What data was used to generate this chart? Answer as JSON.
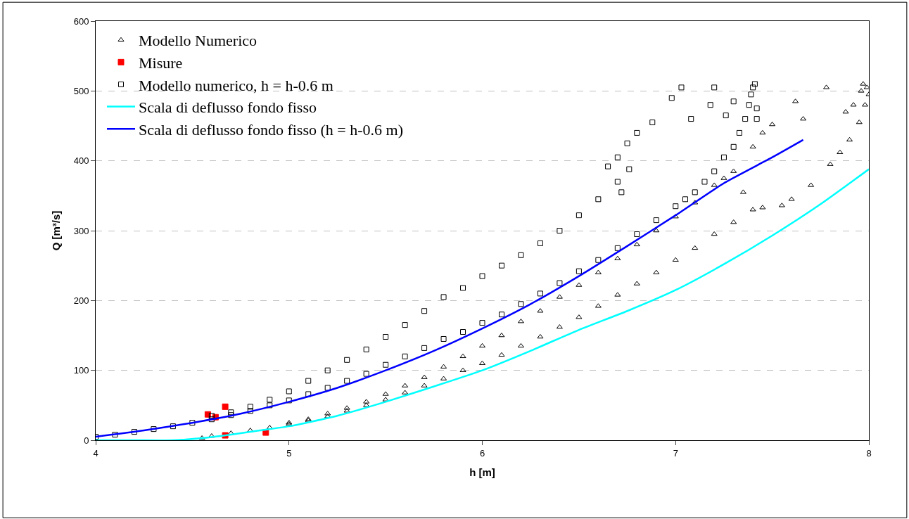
{
  "chart_data": {
    "type": "scatter",
    "xlabel": "h [m]",
    "ylabel": "Q [m³/s]",
    "xlim": [
      4,
      8
    ],
    "ylim": [
      0,
      600
    ],
    "xticks": [
      4,
      5,
      6,
      7,
      8
    ],
    "yticks": [
      0,
      100,
      200,
      300,
      400,
      500,
      600
    ],
    "grid": "y",
    "legend": "top left",
    "series": [
      {
        "name": "Modello Numerico",
        "color": "#000000",
        "marker": "triangle",
        "x": [
          4.55,
          4.6,
          4.7,
          4.8,
          4.9,
          5.0,
          5.1,
          5.2,
          5.3,
          5.4,
          5.5,
          5.6,
          5.7,
          5.8,
          5.9,
          6.0,
          6.1,
          6.2,
          6.3,
          6.4,
          6.5,
          6.6,
          6.7,
          6.8,
          6.9,
          7.0,
          7.1,
          7.2,
          7.3,
          7.4,
          7.45,
          7.55,
          7.6,
          7.7,
          7.8,
          7.85,
          7.9,
          7.95,
          7.98,
          8.0,
          7.99,
          7.97,
          7.96,
          7.62,
          7.66,
          7.78,
          7.88,
          7.92,
          5.0,
          5.1,
          5.2,
          5.3,
          5.4,
          5.5,
          5.6,
          5.7,
          5.8,
          5.9,
          6.0,
          6.1,
          6.2,
          6.3,
          6.4,
          6.5,
          6.6,
          6.7,
          6.8,
          6.9,
          7.0,
          7.1,
          7.2,
          7.25,
          7.3,
          7.35,
          7.4,
          7.45,
          7.5
        ],
        "values": [
          3,
          6,
          10,
          14,
          18,
          23,
          28,
          34,
          42,
          50,
          58,
          68,
          78,
          88,
          100,
          110,
          122,
          135,
          148,
          162,
          176,
          192,
          208,
          224,
          240,
          258,
          275,
          295,
          312,
          330,
          333,
          336,
          345,
          365,
          395,
          412,
          430,
          455,
          480,
          495,
          505,
          510,
          500,
          485,
          460,
          505,
          470,
          480,
          25,
          30,
          38,
          46,
          55,
          66,
          78,
          90,
          105,
          120,
          135,
          150,
          170,
          185,
          205,
          222,
          240,
          260,
          280,
          300,
          320,
          340,
          365,
          375,
          385,
          355,
          420,
          440,
          452
        ]
      },
      {
        "name": "Misure",
        "color": "#ff0000",
        "marker": "square",
        "x": [
          4.58,
          4.62,
          4.67,
          4.67,
          4.88
        ],
        "values": [
          37,
          33,
          48,
          7,
          11
        ]
      },
      {
        "name": "Modello numerico, h = h-0.6 m",
        "color": "#000000",
        "marker": "square",
        "x": [
          4.0,
          4.1,
          4.2,
          4.3,
          4.4,
          4.5,
          4.6,
          4.7,
          4.8,
          4.9,
          5.0,
          5.1,
          5.2,
          5.3,
          5.4,
          5.5,
          5.6,
          5.7,
          5.8,
          5.9,
          6.0,
          6.1,
          6.2,
          6.3,
          6.4,
          6.5,
          6.6,
          6.7,
          6.8,
          6.9,
          7.0,
          7.05,
          7.1,
          7.15,
          7.2,
          7.25,
          7.3,
          7.33,
          7.36,
          7.38,
          7.39,
          7.4,
          7.41,
          7.42,
          7.26,
          7.3,
          7.42,
          4.6,
          4.7,
          4.8,
          4.9,
          5.0,
          5.1,
          5.2,
          5.3,
          5.4,
          5.5,
          5.6,
          5.7,
          5.8,
          5.9,
          6.0,
          6.1,
          6.2,
          6.3,
          6.4,
          6.5,
          6.6,
          6.7,
          6.76,
          6.65,
          6.7,
          6.75,
          6.8,
          6.88,
          6.72,
          6.98,
          7.03,
          7.08,
          7.18,
          7.2
        ],
        "values": [
          5,
          8,
          12,
          16,
          20,
          25,
          30,
          36,
          42,
          50,
          57,
          66,
          75,
          85,
          95,
          108,
          120,
          132,
          145,
          155,
          168,
          180,
          195,
          210,
          225,
          242,
          258,
          275,
          295,
          315,
          335,
          345,
          355,
          370,
          385,
          405,
          420,
          440,
          460,
          480,
          495,
          505,
          510,
          475,
          465,
          485,
          460,
          35,
          40,
          48,
          58,
          70,
          85,
          100,
          115,
          130,
          148,
          165,
          185,
          205,
          218,
          235,
          250,
          265,
          282,
          300,
          322,
          345,
          370,
          388,
          392,
          405,
          425,
          440,
          455,
          355,
          490,
          505,
          460,
          480,
          505
        ]
      },
      {
        "name": "Scala di deflusso fondo fisso",
        "type": "line",
        "color": "#00ffff",
        "marker": "none",
        "x": [
          4.0,
          4.2,
          4.4,
          4.55,
          4.7,
          4.85,
          5.0,
          5.25,
          5.5,
          5.75,
          6.0,
          6.25,
          6.5,
          6.75,
          7.0,
          7.25,
          7.5,
          7.75,
          8.0
        ],
        "values": [
          0,
          0,
          0,
          3,
          8,
          14,
          20,
          35,
          55,
          77,
          100,
          128,
          158,
          185,
          215,
          252,
          293,
          338,
          388
        ]
      },
      {
        "name": "Scala di deflusso fondo fisso (h = h-0.6 m)",
        "type": "line",
        "color": "#0000ff",
        "marker": "none",
        "x": [
          4.0,
          4.25,
          4.5,
          4.75,
          5.0,
          5.25,
          5.5,
          5.75,
          6.0,
          6.25,
          6.5,
          6.75,
          7.0,
          7.25,
          7.5,
          7.66
        ],
        "values": [
          5,
          14,
          25,
          38,
          55,
          75,
          100,
          128,
          160,
          195,
          235,
          278,
          322,
          368,
          405,
          430
        ]
      }
    ]
  }
}
